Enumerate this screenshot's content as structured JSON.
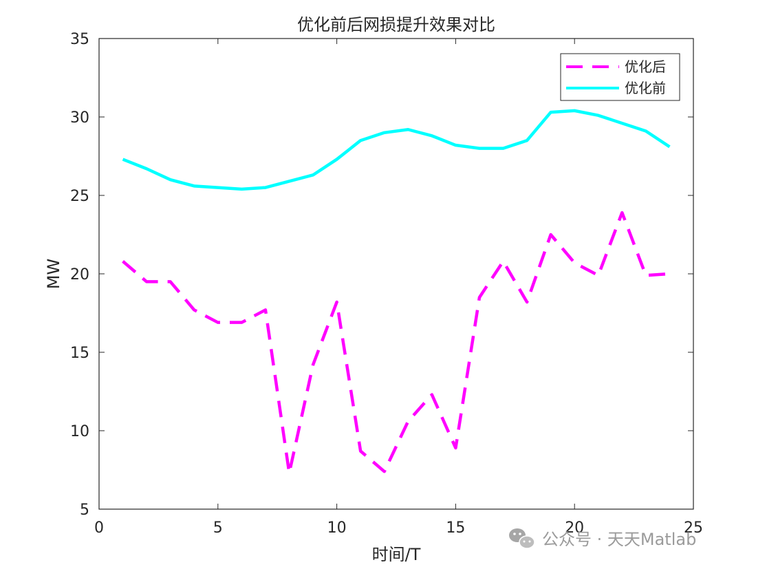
{
  "chart_data": {
    "type": "line",
    "title": "优化前后网损提升效果对比",
    "xlabel": "时间/T",
    "ylabel": "MW",
    "xlim": [
      0,
      25
    ],
    "ylim": [
      5,
      35
    ],
    "xticks": [
      0,
      5,
      10,
      15,
      20,
      25
    ],
    "yticks": [
      5,
      10,
      15,
      20,
      25,
      30,
      35
    ],
    "grid": false,
    "legend_position": "top-right",
    "x": [
      1,
      2,
      3,
      4,
      5,
      6,
      7,
      8,
      9,
      10,
      11,
      12,
      13,
      14,
      15,
      16,
      17,
      18,
      19,
      20,
      21,
      22,
      23,
      24
    ],
    "series": [
      {
        "name": "优化后",
        "color": "#FF00FF",
        "line_style": "dashed",
        "values": [
          20.8,
          19.5,
          19.5,
          17.7,
          16.9,
          16.9,
          17.7,
          7.3,
          14.2,
          18.2,
          8.7,
          7.4,
          10.6,
          12.3,
          8.9,
          18.5,
          20.8,
          18.2,
          22.5,
          20.7,
          19.9,
          23.9,
          19.9,
          20.0
        ]
      },
      {
        "name": "优化前",
        "color": "#00FFFF",
        "line_style": "solid",
        "values": [
          27.3,
          26.7,
          26.0,
          25.6,
          25.5,
          25.4,
          25.5,
          25.9,
          26.3,
          27.3,
          28.5,
          29.0,
          29.2,
          28.8,
          28.2,
          28.0,
          28.0,
          28.5,
          30.3,
          30.4,
          30.1,
          29.6,
          29.1,
          28.1
        ]
      }
    ]
  },
  "watermark": {
    "icon": "wechat-icon",
    "text": "公众号 · 天天Matlab"
  }
}
